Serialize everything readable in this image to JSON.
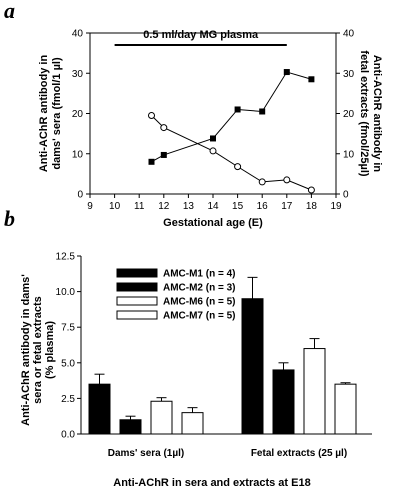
{
  "chart_data": [
    {
      "panel": "a",
      "type": "line",
      "annotation": "0.5 ml/day MG plasma",
      "annotation_x_range": [
        10,
        17
      ],
      "xlabel": "Gestational age (E)",
      "ylabel_left": "Anti-AChR antibody in dams' sera (fmol/1 µl)",
      "ylabel_right": "Anti-AChR antibody in fetal extracts (fmol/25µl)",
      "xlim": [
        9,
        19
      ],
      "ylim": [
        0,
        40
      ],
      "x_ticks": [
        9,
        10,
        11,
        12,
        13,
        14,
        15,
        16,
        17,
        18,
        19
      ],
      "y_ticks": [
        0,
        10,
        20,
        30,
        40
      ],
      "series": [
        {
          "marker": "filled-square",
          "x": [
            11.5,
            12,
            14,
            15,
            16,
            17,
            18
          ],
          "y": [
            8,
            9.7,
            13.8,
            21,
            20.5,
            30.3,
            28.5
          ]
        },
        {
          "marker": "open-circle",
          "x": [
            11.5,
            12,
            14,
            15,
            16,
            17,
            18
          ],
          "y": [
            19.5,
            16.5,
            10.7,
            6.8,
            3,
            3.5,
            1
          ]
        }
      ]
    },
    {
      "panel": "b",
      "type": "bar",
      "title": "",
      "xlabel": "Anti-AChR in sera and extracts at E18",
      "ylabel": "Anti-AChR antibody in dams' sera or fetal extracts (% plasma)",
      "ylim": [
        0,
        12.5
      ],
      "y_ticks": [
        "0.0",
        "2.5",
        "5.0",
        "7.5",
        "10.0",
        "12.5"
      ],
      "categories": [
        "Dams' sera (1µl)",
        "Fetal extracts (25 µl)"
      ],
      "legend_position": "top-left",
      "series": [
        {
          "name": "AMC-M1 (n = 4)",
          "fill": "#000000",
          "values": [
            3.5,
            9.5
          ],
          "errors": [
            0.7,
            1.5
          ]
        },
        {
          "name": "AMC-M2 (n = 3)",
          "fill": "#000000",
          "values": [
            1.0,
            4.5
          ],
          "errors": [
            0.25,
            0.5
          ]
        },
        {
          "name": "AMC-M6 (n = 5)",
          "fill": "#ffffff",
          "values": [
            2.3,
            6.0
          ],
          "errors": [
            0.25,
            0.7
          ]
        },
        {
          "name": "AMC-M7 (n = 5)",
          "fill": "#ffffff",
          "values": [
            1.5,
            3.5
          ],
          "errors": [
            0.35,
            0.1
          ]
        }
      ]
    }
  ]
}
